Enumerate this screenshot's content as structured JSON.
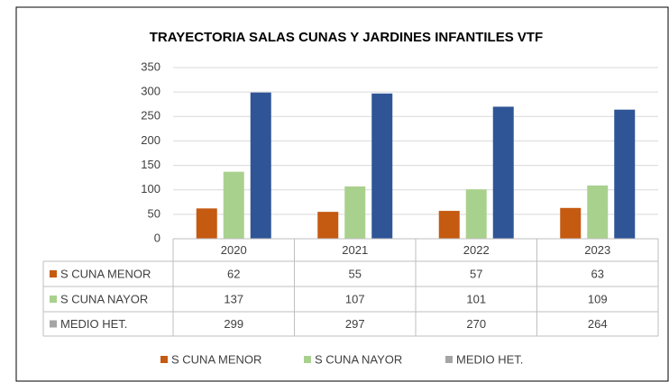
{
  "chart_data": {
    "type": "bar",
    "title": "TRAYECTORIA SALAS CUNAS Y JARDINES INFANTILES VTF",
    "categories": [
      "2020",
      "2021",
      "2022",
      "2023"
    ],
    "series": [
      {
        "name": "S CUNA MENOR",
        "color": "#c55a11",
        "key_color": "#c55a11",
        "values": [
          62,
          55,
          57,
          63
        ]
      },
      {
        "name": "S CUNA NAYOR",
        "color": "#a9d18e",
        "key_color": "#a9d18e",
        "values": [
          137,
          107,
          101,
          109
        ]
      },
      {
        "name": "MEDIO HET.",
        "color": "#2f5597",
        "key_color": "#a5a5a5",
        "values": [
          299,
          297,
          270,
          264
        ]
      }
    ],
    "ylim": [
      0,
      350
    ],
    "yticks": [
      0,
      50,
      100,
      150,
      200,
      250,
      300,
      350
    ],
    "grid": true,
    "data_table": true,
    "legend": "bottom"
  }
}
